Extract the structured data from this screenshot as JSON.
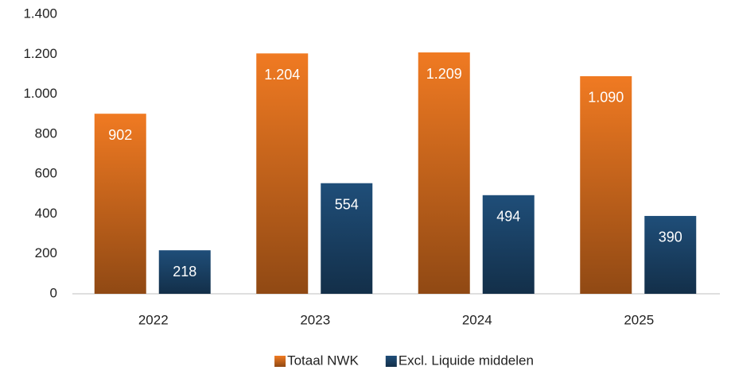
{
  "chart_data": {
    "type": "bar",
    "categories": [
      "2022",
      "2023",
      "2024",
      "2025"
    ],
    "series": [
      {
        "name": "Totaal NWK",
        "color": "#f07a22",
        "values": [
          902,
          1204,
          1209,
          1090
        ],
        "value_labels": [
          "902",
          "1.204",
          "1.209",
          "1.090"
        ]
      },
      {
        "name": "Excl. Liquide middelen",
        "color": "#1f4e79",
        "values": [
          218,
          554,
          494,
          390
        ],
        "value_labels": [
          "218",
          "554",
          "494",
          "390"
        ]
      }
    ],
    "ylim": [
      0,
      1400
    ],
    "yticks": [
      0,
      200,
      400,
      600,
      800,
      {
        "value": 1000,
        "label": "1.000"
      },
      {
        "value": 1200,
        "label": "1.200"
      },
      {
        "value": 1400,
        "label": "1.400"
      }
    ],
    "grid": false,
    "legend": "bottom"
  }
}
